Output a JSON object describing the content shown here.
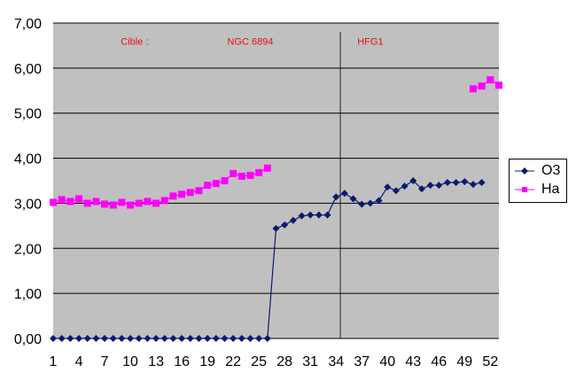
{
  "chart_data": {
    "type": "line",
    "title": "",
    "xlabel": "",
    "ylabel": "",
    "ylim": [
      0,
      7
    ],
    "xlim": [
      1,
      53
    ],
    "y_ticks": [
      "0,00",
      "1,00",
      "2,00",
      "3,00",
      "4,00",
      "5,00",
      "6,00",
      "7,00"
    ],
    "x_ticks": [
      "1",
      "4",
      "7",
      "10",
      "13",
      "16",
      "19",
      "22",
      "25",
      "28",
      "31",
      "34",
      "37",
      "40",
      "43",
      "46",
      "49",
      "52"
    ],
    "grid": true,
    "legend_position": "right",
    "background": "#c0c0c0",
    "vline_x": 34.5,
    "annotations": [
      {
        "text": "Cible :",
        "x": 10.5,
        "y": 6.6
      },
      {
        "text": "NGC 6894",
        "x": 24,
        "y": 6.6
      },
      {
        "text": "HFG1",
        "x": 38,
        "y": 6.6
      }
    ],
    "series": [
      {
        "name": "O3",
        "color": "#0a1a6e",
        "marker": "diamond",
        "values": [
          0,
          0,
          0,
          0,
          0,
          0,
          0,
          0,
          0,
          0,
          0,
          0,
          0,
          0,
          0,
          0,
          0,
          0,
          0,
          0,
          0,
          0,
          0,
          0,
          0,
          0,
          2.44,
          2.52,
          2.62,
          2.72,
          2.74,
          2.74,
          2.74,
          3.14,
          3.22,
          3.1,
          2.98,
          3.0,
          3.06,
          3.36,
          3.28,
          3.38,
          3.5,
          3.32,
          3.4,
          3.4,
          3.46,
          3.46,
          3.48,
          3.42,
          3.46
        ]
      },
      {
        "name": "Ha",
        "color": "#ff00ff",
        "marker": "square",
        "segments": [
          {
            "start": 1,
            "values": [
              3.02,
              3.08,
              3.04,
              3.1,
              3.0,
              3.04,
              2.98,
              2.96,
              3.02,
              2.96,
              3.0,
              3.04,
              3.0,
              3.06,
              3.16,
              3.2,
              3.24,
              3.28,
              3.4,
              3.44,
              3.5,
              3.66,
              3.6,
              3.62,
              3.68,
              3.78
            ]
          },
          {
            "start": 50,
            "values": [
              5.54,
              5.6,
              5.74,
              5.62
            ]
          }
        ]
      }
    ]
  }
}
